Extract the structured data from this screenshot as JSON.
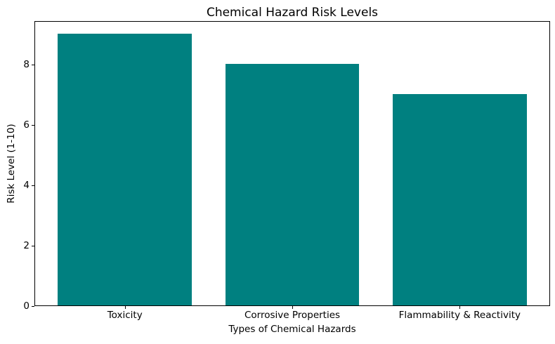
{
  "chart_data": {
    "type": "bar",
    "title": "Chemical Hazard Risk Levels",
    "xlabel": "Types of Chemical Hazards",
    "ylabel": "Risk Level (1-10)",
    "categories": [
      "Toxicity",
      "Corrosive Properties",
      "Flammability & Reactivity"
    ],
    "values": [
      9,
      8,
      7
    ],
    "yticks": [
      0,
      2,
      4,
      6,
      8
    ],
    "ylim": [
      0,
      9.45
    ],
    "bar_width": 0.8,
    "bar_color": "#008080",
    "text_color": "#000000",
    "spine_color": "#000000",
    "background_color": "#ffffff",
    "grid": false,
    "legend": "none"
  }
}
